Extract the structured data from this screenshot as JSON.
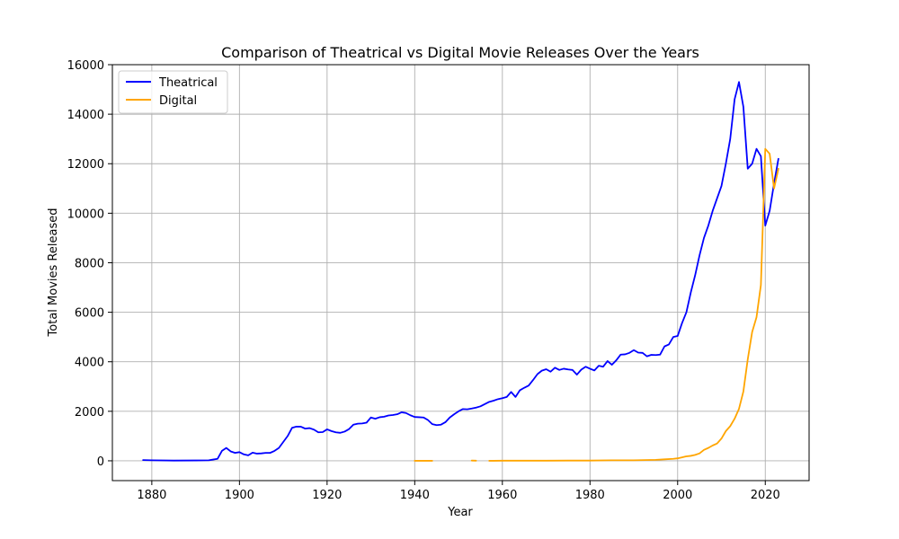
{
  "chart_data": {
    "type": "line",
    "title": "Comparison of Theatrical vs Digital Movie Releases Over the Years",
    "xlabel": "Year",
    "ylabel": "Total Movies Released",
    "xlim": [
      1871,
      2030
    ],
    "ylim": [
      -800,
      16000
    ],
    "xticks": [
      1880,
      1900,
      1920,
      1940,
      1960,
      1980,
      2000,
      2020
    ],
    "yticks": [
      0,
      2000,
      4000,
      6000,
      8000,
      10000,
      12000,
      14000,
      16000
    ],
    "grid": true,
    "legend_position": "top-left",
    "series": [
      {
        "name": "Theatrical",
        "color": "#0000ff",
        "points": [
          [
            1878,
            30
          ],
          [
            1880,
            20
          ],
          [
            1885,
            10
          ],
          [
            1890,
            15
          ],
          [
            1893,
            20
          ],
          [
            1894,
            50
          ],
          [
            1895,
            80
          ],
          [
            1896,
            400
          ],
          [
            1897,
            520
          ],
          [
            1898,
            380
          ],
          [
            1899,
            320
          ],
          [
            1900,
            350
          ],
          [
            1901,
            260
          ],
          [
            1902,
            220
          ],
          [
            1903,
            330
          ],
          [
            1904,
            290
          ],
          [
            1905,
            300
          ],
          [
            1906,
            320
          ],
          [
            1907,
            320
          ],
          [
            1908,
            400
          ],
          [
            1909,
            520
          ],
          [
            1910,
            760
          ],
          [
            1911,
            1000
          ],
          [
            1912,
            1330
          ],
          [
            1913,
            1380
          ],
          [
            1914,
            1380
          ],
          [
            1915,
            1300
          ],
          [
            1916,
            1320
          ],
          [
            1917,
            1260
          ],
          [
            1918,
            1150
          ],
          [
            1919,
            1160
          ],
          [
            1920,
            1270
          ],
          [
            1921,
            1200
          ],
          [
            1922,
            1150
          ],
          [
            1923,
            1130
          ],
          [
            1924,
            1180
          ],
          [
            1925,
            1280
          ],
          [
            1926,
            1460
          ],
          [
            1927,
            1500
          ],
          [
            1928,
            1510
          ],
          [
            1929,
            1540
          ],
          [
            1930,
            1750
          ],
          [
            1931,
            1700
          ],
          [
            1932,
            1760
          ],
          [
            1933,
            1780
          ],
          [
            1934,
            1830
          ],
          [
            1935,
            1850
          ],
          [
            1936,
            1880
          ],
          [
            1937,
            1960
          ],
          [
            1938,
            1930
          ],
          [
            1939,
            1840
          ],
          [
            1940,
            1770
          ],
          [
            1941,
            1760
          ],
          [
            1942,
            1750
          ],
          [
            1943,
            1650
          ],
          [
            1944,
            1480
          ],
          [
            1945,
            1440
          ],
          [
            1946,
            1460
          ],
          [
            1947,
            1560
          ],
          [
            1948,
            1750
          ],
          [
            1949,
            1880
          ],
          [
            1950,
            2000
          ],
          [
            1951,
            2090
          ],
          [
            1952,
            2080
          ],
          [
            1953,
            2110
          ],
          [
            1954,
            2150
          ],
          [
            1955,
            2200
          ],
          [
            1956,
            2290
          ],
          [
            1957,
            2380
          ],
          [
            1958,
            2430
          ],
          [
            1959,
            2490
          ],
          [
            1960,
            2530
          ],
          [
            1961,
            2580
          ],
          [
            1962,
            2780
          ],
          [
            1963,
            2580
          ],
          [
            1964,
            2850
          ],
          [
            1965,
            2950
          ],
          [
            1966,
            3040
          ],
          [
            1967,
            3260
          ],
          [
            1968,
            3500
          ],
          [
            1969,
            3640
          ],
          [
            1970,
            3700
          ],
          [
            1971,
            3600
          ],
          [
            1972,
            3760
          ],
          [
            1973,
            3670
          ],
          [
            1974,
            3720
          ],
          [
            1975,
            3690
          ],
          [
            1976,
            3670
          ],
          [
            1977,
            3480
          ],
          [
            1978,
            3680
          ],
          [
            1979,
            3800
          ],
          [
            1980,
            3720
          ],
          [
            1981,
            3650
          ],
          [
            1982,
            3840
          ],
          [
            1983,
            3800
          ],
          [
            1984,
            4030
          ],
          [
            1985,
            3880
          ],
          [
            1986,
            4060
          ],
          [
            1987,
            4290
          ],
          [
            1988,
            4300
          ],
          [
            1989,
            4360
          ],
          [
            1990,
            4470
          ],
          [
            1991,
            4370
          ],
          [
            1992,
            4360
          ],
          [
            1993,
            4220
          ],
          [
            1994,
            4280
          ],
          [
            1995,
            4270
          ],
          [
            1996,
            4290
          ],
          [
            1997,
            4620
          ],
          [
            1998,
            4700
          ],
          [
            1999,
            5000
          ],
          [
            2000,
            5040
          ],
          [
            2001,
            5560
          ],
          [
            2002,
            6000
          ],
          [
            2003,
            6800
          ],
          [
            2004,
            7500
          ],
          [
            2005,
            8300
          ],
          [
            2006,
            9000
          ],
          [
            2007,
            9500
          ],
          [
            2008,
            10100
          ],
          [
            2009,
            10600
          ],
          [
            2010,
            11100
          ],
          [
            2011,
            12000
          ],
          [
            2012,
            13000
          ],
          [
            2013,
            14600
          ],
          [
            2014,
            15300
          ],
          [
            2015,
            14300
          ],
          [
            2016,
            11800
          ],
          [
            2017,
            12000
          ],
          [
            2018,
            12600
          ],
          [
            2019,
            12300
          ],
          [
            2020,
            9500
          ],
          [
            2021,
            10100
          ],
          [
            2022,
            11200
          ],
          [
            2023,
            12200
          ]
        ]
      },
      {
        "name": "Digital",
        "color": "#ffa500",
        "segments": [
          [
            [
              1940,
              0
            ],
            [
              1941,
              0
            ],
            [
              1942,
              0
            ],
            [
              1943,
              0
            ],
            [
              1944,
              0
            ]
          ],
          [
            [
              1953,
              10
            ],
            [
              1954,
              5
            ]
          ],
          [
            [
              1957,
              0
            ],
            [
              1958,
              0
            ],
            [
              1960,
              5
            ],
            [
              1965,
              5
            ],
            [
              1970,
              5
            ],
            [
              1975,
              10
            ],
            [
              1980,
              10
            ],
            [
              1985,
              20
            ],
            [
              1990,
              20
            ],
            [
              1995,
              40
            ],
            [
              1997,
              60
            ],
            [
              1999,
              80
            ],
            [
              2000,
              100
            ],
            [
              2001,
              140
            ],
            [
              2002,
              180
            ],
            [
              2003,
              200
            ],
            [
              2004,
              240
            ],
            [
              2005,
              300
            ],
            [
              2006,
              440
            ],
            [
              2007,
              520
            ],
            [
              2008,
              620
            ],
            [
              2009,
              700
            ],
            [
              2010,
              900
            ],
            [
              2011,
              1200
            ],
            [
              2012,
              1400
            ],
            [
              2013,
              1700
            ],
            [
              2014,
              2100
            ],
            [
              2015,
              2800
            ],
            [
              2016,
              4100
            ],
            [
              2017,
              5200
            ],
            [
              2018,
              5800
            ],
            [
              2019,
              7100
            ],
            [
              2020,
              12600
            ],
            [
              2021,
              12400
            ],
            [
              2022,
              11000
            ],
            [
              2023,
              11800
            ]
          ]
        ]
      }
    ]
  }
}
